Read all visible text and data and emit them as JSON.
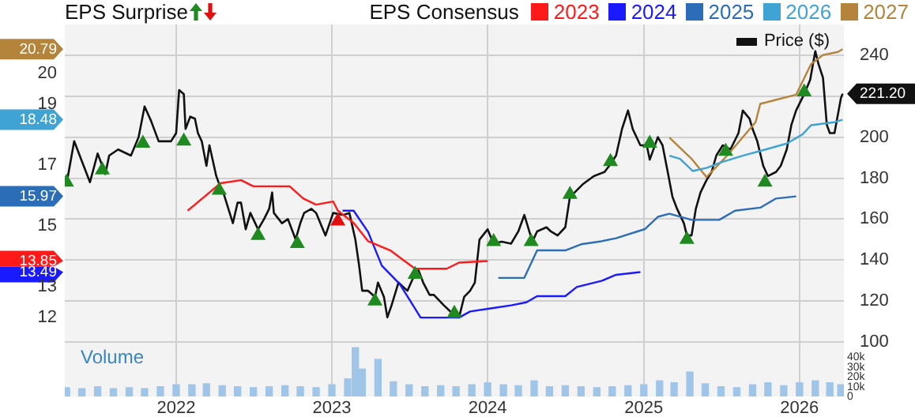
{
  "chart_data": [
    {
      "type": "line",
      "title": "EPS Surprise",
      "legend_title": "EPS Consensus",
      "legend": "top right",
      "grid": true,
      "tick_labels": "y",
      "xlim": [
        "2021-04-15",
        "2026-04-15"
      ],
      "xticks": [
        "2022",
        "2023",
        "2024",
        "2025",
        "2026"
      ],
      "ylim": [
        11.2,
        21.6
      ],
      "yticks": [
        12,
        13,
        13.49,
        13.85,
        15,
        15.97,
        17,
        18.48,
        19,
        20,
        20.79
      ],
      "y2lim": [
        100,
        255
      ],
      "y2ticks": [
        100,
        120,
        140,
        160,
        180,
        200,
        {
          "value": 220,
          "label": null
        },
        {
          "value": 221.2,
          "label": "221.20"
        },
        240
      ],
      "series": [
        {
          "name": "2023",
          "color": "#ff1a1a",
          "x": [
            "2022-01-28",
            "2022-02-14",
            "2022-04-15",
            "2022-06-02",
            "2022-07-01",
            "2022-08-14",
            "2022-09-24",
            "2022-10-26",
            "2022-11-25",
            "2023-01-04",
            "2023-01-15",
            "2023-02-21",
            "2023-03-27",
            "2023-05-18",
            "2023-07-15",
            "2023-09-27",
            "2023-10-26",
            "2024-01-01"
          ],
          "values": [
            15.5,
            15.7,
            16.4,
            16.5,
            16.3,
            16.3,
            16.3,
            15.9,
            15.7,
            15.8,
            15.5,
            15.1,
            14.5,
            14.2,
            13.6,
            13.6,
            13.8,
            13.85
          ]
        },
        {
          "name": "2024",
          "color": "#1a1aff",
          "x": [
            "2023-01-26",
            "2023-02-21",
            "2023-03-27",
            "2023-04-28",
            "2023-06-09",
            "2023-07-28",
            "2023-10-15",
            "2023-10-26",
            "2023-11-21",
            "2024-01-08",
            "2024-02-25",
            "2024-04-01",
            "2024-04-26",
            "2024-07-01",
            "2024-07-28",
            "2024-09-24",
            "2024-10-28",
            "2024-12-24"
          ],
          "values": [
            15.5,
            15.5,
            14.8,
            13.7,
            13.1,
            12.0,
            12.0,
            12.0,
            12.2,
            12.3,
            12.4,
            12.5,
            12.7,
            12.7,
            13.0,
            13.2,
            13.4,
            13.49
          ]
        },
        {
          "name": "2025",
          "color": "#2c6db8",
          "x": [
            "2024-01-26",
            "2024-03-27",
            "2024-04-26",
            "2024-07-01",
            "2024-08-07",
            "2024-09-24",
            "2024-10-28",
            "2025-01-04",
            "2025-02-03",
            "2025-03-02",
            "2025-04-23",
            "2025-06-27",
            "2025-08-03",
            "2025-10-01",
            "2025-11-07",
            "2025-12-24"
          ],
          "values": [
            13.3,
            13.3,
            14.2,
            14.2,
            14.4,
            14.5,
            14.6,
            14.9,
            15.3,
            15.4,
            15.2,
            15.2,
            15.5,
            15.6,
            15.9,
            15.97
          ]
        },
        {
          "name": "2026",
          "color": "#3fa3d4",
          "x": [
            "2025-03-02",
            "2025-03-27",
            "2025-04-26",
            "2025-05-28",
            "2025-07-05",
            "2025-08-21",
            "2025-10-12",
            "2025-12-02",
            "2026-01-08",
            "2026-01-28",
            "2026-03-24",
            "2026-04-12"
          ],
          "values": [
            17.3,
            17.2,
            16.8,
            16.9,
            17.1,
            17.3,
            17.5,
            17.7,
            18.0,
            18.3,
            18.4,
            18.48
          ]
        },
        {
          "name": "2027",
          "color": "#b5843c",
          "x": [
            "2025-03-02",
            "2025-04-23",
            "2025-05-28",
            "2025-07-15",
            "2025-09-20",
            "2025-10-01",
            "2025-12-24",
            "2026-01-28",
            "2026-02-25",
            "2026-04-01",
            "2026-04-12"
          ],
          "values": [
            17.9,
            17.2,
            16.6,
            17.3,
            18.4,
            19.0,
            19.3,
            20.3,
            20.6,
            20.7,
            20.79
          ]
        },
        {
          "name": "Price ($)",
          "color": "#111111",
          "axis": "y2",
          "x": [
            "2021-04-19",
            "2021-05-07",
            "2021-06-13",
            "2021-07-01",
            "2021-07-19",
            "2021-07-28",
            "2021-08-18",
            "2021-09-17",
            "2021-10-05",
            "2021-10-19",
            "2021-11-03",
            "2021-11-21",
            "2021-12-06",
            "2021-12-20",
            "2022-01-01",
            "2022-01-08",
            "2022-01-19",
            "2022-01-23",
            "2022-02-03",
            "2022-02-14",
            "2022-02-21",
            "2022-03-02",
            "2022-03-13",
            "2022-03-20",
            "2022-04-05",
            "2022-04-12",
            "2022-04-23",
            "2022-05-14",
            "2022-05-25",
            "2022-06-02",
            "2022-06-13",
            "2022-06-24",
            "2022-07-12",
            "2022-07-26",
            "2022-08-07",
            "2022-08-14",
            "2022-08-18",
            "2022-09-06",
            "2022-09-20",
            "2022-10-08",
            "2022-10-19",
            "2022-10-28",
            "2022-11-14",
            "2022-11-25",
            "2022-12-17",
            "2023-01-04",
            "2023-01-28",
            "2023-02-11",
            "2023-02-25",
            "2023-03-06",
            "2023-03-13",
            "2023-03-27",
            "2023-04-12",
            "2023-04-19",
            "2023-05-03",
            "2023-05-11",
            "2023-05-21",
            "2023-06-06",
            "2023-06-27",
            "2023-07-12",
            "2023-07-23",
            "2023-08-03",
            "2023-08-18",
            "2023-08-28",
            "2023-09-20",
            "2023-10-15",
            "2023-10-26",
            "2023-11-07",
            "2023-11-21",
            "2023-12-02",
            "2023-12-13",
            "2024-01-01",
            "2024-01-15",
            "2024-02-03",
            "2024-02-25",
            "2024-03-13",
            "2024-03-27",
            "2024-04-15",
            "2024-04-26",
            "2024-05-18",
            "2024-05-28",
            "2024-06-13",
            "2024-07-01",
            "2024-07-12",
            "2024-07-23",
            "2024-08-11",
            "2024-09-06",
            "2024-10-01",
            "2024-10-12",
            "2024-10-28",
            "2024-11-11",
            "2024-11-25",
            "2024-12-06",
            "2024-12-24",
            "2025-01-08",
            "2025-01-15",
            "2025-02-03",
            "2025-02-14",
            "2025-02-28",
            "2025-03-09",
            "2025-03-20",
            "2025-04-05",
            "2025-04-12",
            "2025-04-23",
            "2025-05-03",
            "2025-05-14",
            "2025-05-28",
            "2025-06-09",
            "2025-06-20",
            "2025-07-05",
            "2025-07-23",
            "2025-08-11",
            "2025-08-21",
            "2025-09-06",
            "2025-09-13",
            "2025-09-24",
            "2025-10-08",
            "2025-10-19",
            "2025-11-07",
            "2025-11-18",
            "2025-12-02",
            "2025-12-13",
            "2025-12-24",
            "2026-01-12",
            "2026-01-26",
            "2026-02-07",
            "2026-02-14",
            "2026-02-25",
            "2026-03-06",
            "2026-03-13",
            "2026-03-24",
            "2026-04-08",
            "2026-04-12"
          ],
          "values": [
            177,
            198,
            178,
            192,
            182,
            191,
            194,
            191,
            200,
            215,
            208,
            198,
            198,
            198,
            202,
            223,
            221,
            204,
            210,
            209,
            202,
            198,
            186,
            196,
            181,
            177,
            172,
            158,
            168,
            168,
            155,
            163,
            155,
            160,
            165,
            173,
            163,
            158,
            160,
            150,
            158,
            163,
            165,
            163,
            152,
            163,
            162,
            163,
            150,
            137,
            125,
            125,
            122,
            129,
            122,
            112,
            118,
            129,
            125,
            132,
            135,
            129,
            123,
            123,
            118,
            113,
            112,
            122,
            125,
            129,
            150,
            155,
            148,
            149,
            148,
            154,
            162,
            149,
            154,
            156,
            154,
            152,
            156,
            171,
            173,
            177,
            181,
            183,
            186,
            191,
            204,
            213,
            204,
            196,
            196,
            189,
            200,
            196,
            181,
            171,
            165,
            158,
            152,
            152,
            165,
            173,
            179,
            183,
            191,
            196,
            194,
            202,
            213,
            209,
            204,
            198,
            186,
            181,
            183,
            186,
            194,
            206,
            213,
            221,
            228,
            242,
            236,
            229,
            206,
            202,
            202,
            219,
            221.2
          ]
        },
        {
          "type": "scatter",
          "marker": "triangle",
          "color": "#1f8a1f",
          "axis": "y2",
          "x": [
            "2021-04-19",
            "2021-07-12",
            "2021-10-15",
            "2022-01-19",
            "2022-04-12",
            "2022-07-12",
            "2022-10-12",
            "2023-04-12",
            "2023-07-15",
            "2023-10-15",
            "2024-01-15",
            "2024-04-12",
            "2024-07-12",
            "2024-10-15",
            "2025-01-15",
            "2025-04-12",
            "2025-07-12",
            "2025-10-12",
            "2026-01-12"
          ],
          "values": [
            178,
            184,
            197,
            198,
            174,
            152,
            148,
            120,
            133,
            114,
            149,
            149,
            172,
            188,
            197,
            150,
            193,
            178,
            222
          ]
        },
        {
          "type": "scatter",
          "marker": "triangle",
          "color": "#e01010",
          "axis": "y2",
          "x": [
            "2023-01-15"
          ],
          "values": [
            159
          ]
        }
      ]
    },
    {
      "type": "bar",
      "title": "Volume",
      "grid": "x",
      "xlim": [
        "2021-04-15",
        "2026-04-15"
      ],
      "xticks": [
        "2022",
        "2023",
        "2024",
        "2025",
        "2026"
      ],
      "y2lim": [
        0,
        55000
      ],
      "y2ticks": [
        0,
        {
          "value": 10000,
          "label": "10k"
        },
        {
          "value": 20000,
          "label": "20k"
        },
        {
          "value": 30000,
          "label": "30k"
        },
        {
          "value": 40000,
          "label": "40k"
        }
      ],
      "series": [
        {
          "color": "#9fc5e8",
          "axis": "y2",
          "x": [
            "2021-04-19",
            "2021-05-25",
            "2021-07-01",
            "2021-08-07",
            "2021-09-13",
            "2021-10-19",
            "2021-11-25",
            "2022-01-01",
            "2022-02-07",
            "2022-03-13",
            "2022-04-19",
            "2022-05-25",
            "2022-07-01",
            "2022-08-07",
            "2022-09-13",
            "2022-10-19",
            "2022-11-25",
            "2023-01-01",
            "2023-02-07",
            "2023-02-25",
            "2023-03-13",
            "2023-04-19",
            "2023-05-25",
            "2023-07-01",
            "2023-08-07",
            "2023-09-13",
            "2023-10-19",
            "2023-11-25",
            "2024-01-01",
            "2024-02-07",
            "2024-03-13",
            "2024-04-19",
            "2024-05-25",
            "2024-07-01",
            "2024-08-07",
            "2024-09-13",
            "2024-10-19",
            "2024-11-25",
            "2025-01-01",
            "2025-02-07",
            "2025-03-13",
            "2025-04-19",
            "2025-05-25",
            "2025-07-01",
            "2025-08-07",
            "2025-09-13",
            "2025-10-19",
            "2025-11-25",
            "2026-01-01",
            "2026-02-07",
            "2026-03-13",
            "2026-04-08"
          ],
          "values": [
            9000,
            8000,
            10000,
            8000,
            9000,
            8000,
            10000,
            12000,
            12000,
            13000,
            11000,
            10000,
            9000,
            10000,
            11000,
            10000,
            9000,
            12000,
            18000,
            50000,
            28000,
            38000,
            15000,
            12000,
            10000,
            11000,
            10000,
            12000,
            14000,
            12000,
            11000,
            16000,
            10000,
            11000,
            10000,
            9000,
            10000,
            11000,
            12000,
            16000,
            14000,
            25000,
            13000,
            10000,
            9000,
            12000,
            14000,
            11000,
            14000,
            16000,
            14000,
            12000
          ]
        }
      ]
    }
  ]
}
